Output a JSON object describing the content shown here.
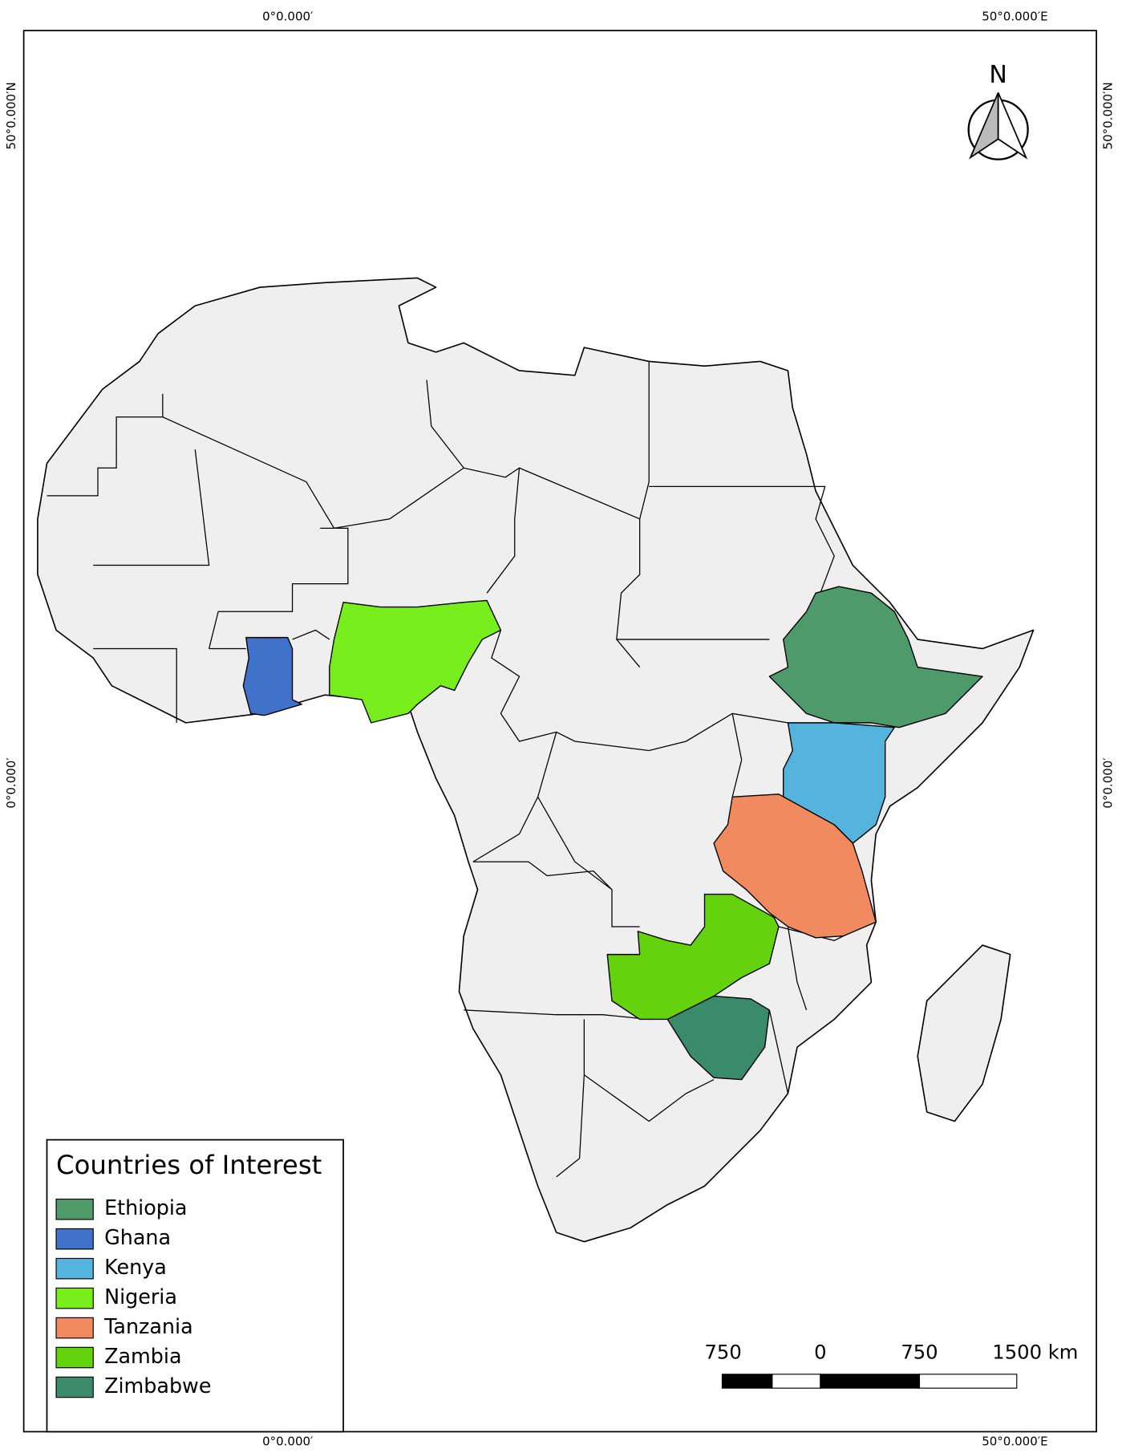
{
  "frame": {
    "top_labels": [
      "0°0.000′",
      "50°0.000′E"
    ],
    "bottom_labels": [
      "0°0.000′",
      "50°0.000′E"
    ],
    "left_labels": [
      "50°0.000′N",
      "0°0.000′"
    ],
    "right_labels": [
      "50°0.000′N",
      "0°0.000′"
    ]
  },
  "north_arrow": {
    "label": "N"
  },
  "legend": {
    "title": "Countries of Interest",
    "items": [
      {
        "name": "Ethiopia",
        "color": "#4e9a6a"
      },
      {
        "name": "Ghana",
        "color": "#3f72c8"
      },
      {
        "name": "Kenya",
        "color": "#55b4de"
      },
      {
        "name": "Nigeria",
        "color": "#78ef1c"
      },
      {
        "name": "Tanzania",
        "color": "#f28a60"
      },
      {
        "name": "Zambia",
        "color": "#64d20c"
      },
      {
        "name": "Zimbabwe",
        "color": "#3a8a6c"
      }
    ]
  },
  "scale_bar": {
    "labels": [
      "750",
      "0",
      "750",
      "1500 km"
    ]
  }
}
